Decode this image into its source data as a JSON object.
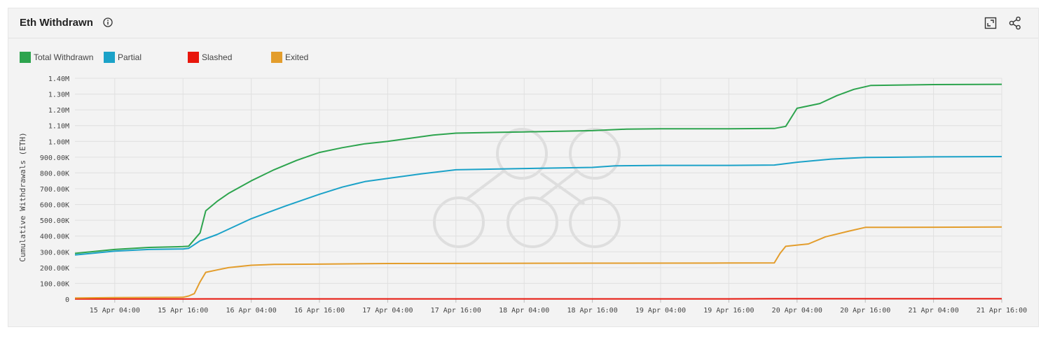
{
  "header": {
    "title": "Eth Withdrawn"
  },
  "colors": {
    "total": "#2da44e",
    "partial": "#1ba2c8",
    "slashed": "#e8160c",
    "exited": "#e39d2c",
    "grid": "#e0e0e0",
    "axis_text": "#444444"
  },
  "chart_data": {
    "type": "line",
    "title": "Eth Withdrawn",
    "xlabel": "",
    "ylabel": "Cumulative Withdrawals (ETH)",
    "ylim": [
      0,
      1400000
    ],
    "y_ticks": [
      0,
      100000,
      200000,
      300000,
      400000,
      500000,
      600000,
      700000,
      800000,
      900000,
      1000000,
      1100000,
      1200000,
      1300000,
      1400000
    ],
    "y_tick_labels": [
      "0",
      "100.00K",
      "200.00K",
      "300.00K",
      "400.00K",
      "500.00K",
      "600.00K",
      "700.00K",
      "800.00K",
      "900.00K",
      "1.00M",
      "1.10M",
      "1.20M",
      "1.30M",
      "1.40M"
    ],
    "xlim": [
      "2023-04-14T21:00",
      "2023-04-21T16:00"
    ],
    "x_ticks": [
      "2023-04-15T04:00",
      "2023-04-15T16:00",
      "2023-04-16T04:00",
      "2023-04-16T16:00",
      "2023-04-17T04:00",
      "2023-04-17T16:00",
      "2023-04-18T04:00",
      "2023-04-18T16:00",
      "2023-04-19T04:00",
      "2023-04-19T16:00",
      "2023-04-20T04:00",
      "2023-04-20T16:00",
      "2023-04-21T04:00",
      "2023-04-21T16:00"
    ],
    "x_tick_labels": [
      "15 Apr 04:00",
      "15 Apr 16:00",
      "16 Apr 04:00",
      "16 Apr 16:00",
      "17 Apr 04:00",
      "17 Apr 16:00",
      "18 Apr 04:00",
      "18 Apr 16:00",
      "19 Apr 04:00",
      "19 Apr 16:00",
      "20 Apr 04:00",
      "20 Apr 16:00",
      "21 Apr 04:00",
      "21 Apr 16:00"
    ],
    "grid": true,
    "legend_position": "top-left",
    "series": [
      {
        "name": "Total Withdrawn",
        "color": "#2da44e",
        "points": [
          [
            "2023-04-14T21:00",
            290000
          ],
          [
            "2023-04-15T04:00",
            315000
          ],
          [
            "2023-04-15T10:00",
            328000
          ],
          [
            "2023-04-15T16:00",
            333000
          ],
          [
            "2023-04-15T17:00",
            336000
          ],
          [
            "2023-04-15T19:00",
            420000
          ],
          [
            "2023-04-15T20:00",
            560000
          ],
          [
            "2023-04-15T22:00",
            620000
          ],
          [
            "2023-04-16T00:00",
            670000
          ],
          [
            "2023-04-16T04:00",
            750000
          ],
          [
            "2023-04-16T08:00",
            820000
          ],
          [
            "2023-04-16T12:00",
            880000
          ],
          [
            "2023-04-16T16:00",
            930000
          ],
          [
            "2023-04-16T20:00",
            960000
          ],
          [
            "2023-04-17T00:00",
            985000
          ],
          [
            "2023-04-17T04:00",
            1000000
          ],
          [
            "2023-04-17T08:00",
            1020000
          ],
          [
            "2023-04-17T12:00",
            1040000
          ],
          [
            "2023-04-17T16:00",
            1052000
          ],
          [
            "2023-04-18T00:00",
            1058000
          ],
          [
            "2023-04-18T04:00",
            1060000
          ],
          [
            "2023-04-18T16:00",
            1068000
          ],
          [
            "2023-04-18T22:00",
            1078000
          ],
          [
            "2023-04-19T04:00",
            1080000
          ],
          [
            "2023-04-19T16:00",
            1080000
          ],
          [
            "2023-04-20T00:00",
            1082000
          ],
          [
            "2023-04-20T02:00",
            1095000
          ],
          [
            "2023-04-20T04:00",
            1210000
          ],
          [
            "2023-04-20T08:00",
            1240000
          ],
          [
            "2023-04-20T11:00",
            1290000
          ],
          [
            "2023-04-20T14:00",
            1330000
          ],
          [
            "2023-04-20T17:00",
            1355000
          ],
          [
            "2023-04-21T04:00",
            1360000
          ],
          [
            "2023-04-21T16:00",
            1362000
          ]
        ]
      },
      {
        "name": "Partial",
        "color": "#1ba2c8",
        "points": [
          [
            "2023-04-14T21:00",
            280000
          ],
          [
            "2023-04-15T04:00",
            305000
          ],
          [
            "2023-04-15T10:00",
            315000
          ],
          [
            "2023-04-15T16:00",
            318000
          ],
          [
            "2023-04-15T17:00",
            322000
          ],
          [
            "2023-04-15T19:00",
            370000
          ],
          [
            "2023-04-15T22:00",
            410000
          ],
          [
            "2023-04-16T04:00",
            510000
          ],
          [
            "2023-04-16T10:00",
            590000
          ],
          [
            "2023-04-16T16:00",
            665000
          ],
          [
            "2023-04-16T20:00",
            710000
          ],
          [
            "2023-04-17T00:00",
            745000
          ],
          [
            "2023-04-17T04:00",
            765000
          ],
          [
            "2023-04-17T10:00",
            795000
          ],
          [
            "2023-04-17T16:00",
            820000
          ],
          [
            "2023-04-18T04:00",
            828000
          ],
          [
            "2023-04-18T16:00",
            835000
          ],
          [
            "2023-04-18T20:00",
            845000
          ],
          [
            "2023-04-19T04:00",
            848000
          ],
          [
            "2023-04-19T16:00",
            848000
          ],
          [
            "2023-04-20T00:00",
            850000
          ],
          [
            "2023-04-20T04:00",
            868000
          ],
          [
            "2023-04-20T10:00",
            888000
          ],
          [
            "2023-04-20T16:00",
            898000
          ],
          [
            "2023-04-21T04:00",
            902000
          ],
          [
            "2023-04-21T16:00",
            904000
          ]
        ]
      },
      {
        "name": "Slashed",
        "color": "#e8160c",
        "points": [
          [
            "2023-04-14T21:00",
            1500
          ],
          [
            "2023-04-15T16:00",
            1500
          ],
          [
            "2023-04-15T20:00",
            1800
          ],
          [
            "2023-04-19T16:00",
            1800
          ],
          [
            "2023-04-20T00:00",
            2500
          ],
          [
            "2023-04-21T16:00",
            2600
          ]
        ]
      },
      {
        "name": "Exited",
        "color": "#e39d2c",
        "points": [
          [
            "2023-04-14T21:00",
            7000
          ],
          [
            "2023-04-15T04:00",
            10000
          ],
          [
            "2023-04-15T16:00",
            12000
          ],
          [
            "2023-04-15T17:00",
            20000
          ],
          [
            "2023-04-15T18:00",
            35000
          ],
          [
            "2023-04-15T19:00",
            110000
          ],
          [
            "2023-04-15T20:00",
            170000
          ],
          [
            "2023-04-15T22:00",
            185000
          ],
          [
            "2023-04-16T00:00",
            200000
          ],
          [
            "2023-04-16T04:00",
            215000
          ],
          [
            "2023-04-16T08:00",
            220000
          ],
          [
            "2023-04-16T16:00",
            222000
          ],
          [
            "2023-04-17T04:00",
            226000
          ],
          [
            "2023-04-18T16:00",
            228000
          ],
          [
            "2023-04-19T16:00",
            229000
          ],
          [
            "2023-04-20T00:00",
            230000
          ],
          [
            "2023-04-20T01:00",
            290000
          ],
          [
            "2023-04-20T02:00",
            335000
          ],
          [
            "2023-04-20T06:00",
            350000
          ],
          [
            "2023-04-20T09:00",
            395000
          ],
          [
            "2023-04-20T13:00",
            430000
          ],
          [
            "2023-04-20T16:00",
            455000
          ],
          [
            "2023-04-21T04:00",
            456000
          ],
          [
            "2023-04-21T16:00",
            457000
          ]
        ]
      }
    ]
  }
}
